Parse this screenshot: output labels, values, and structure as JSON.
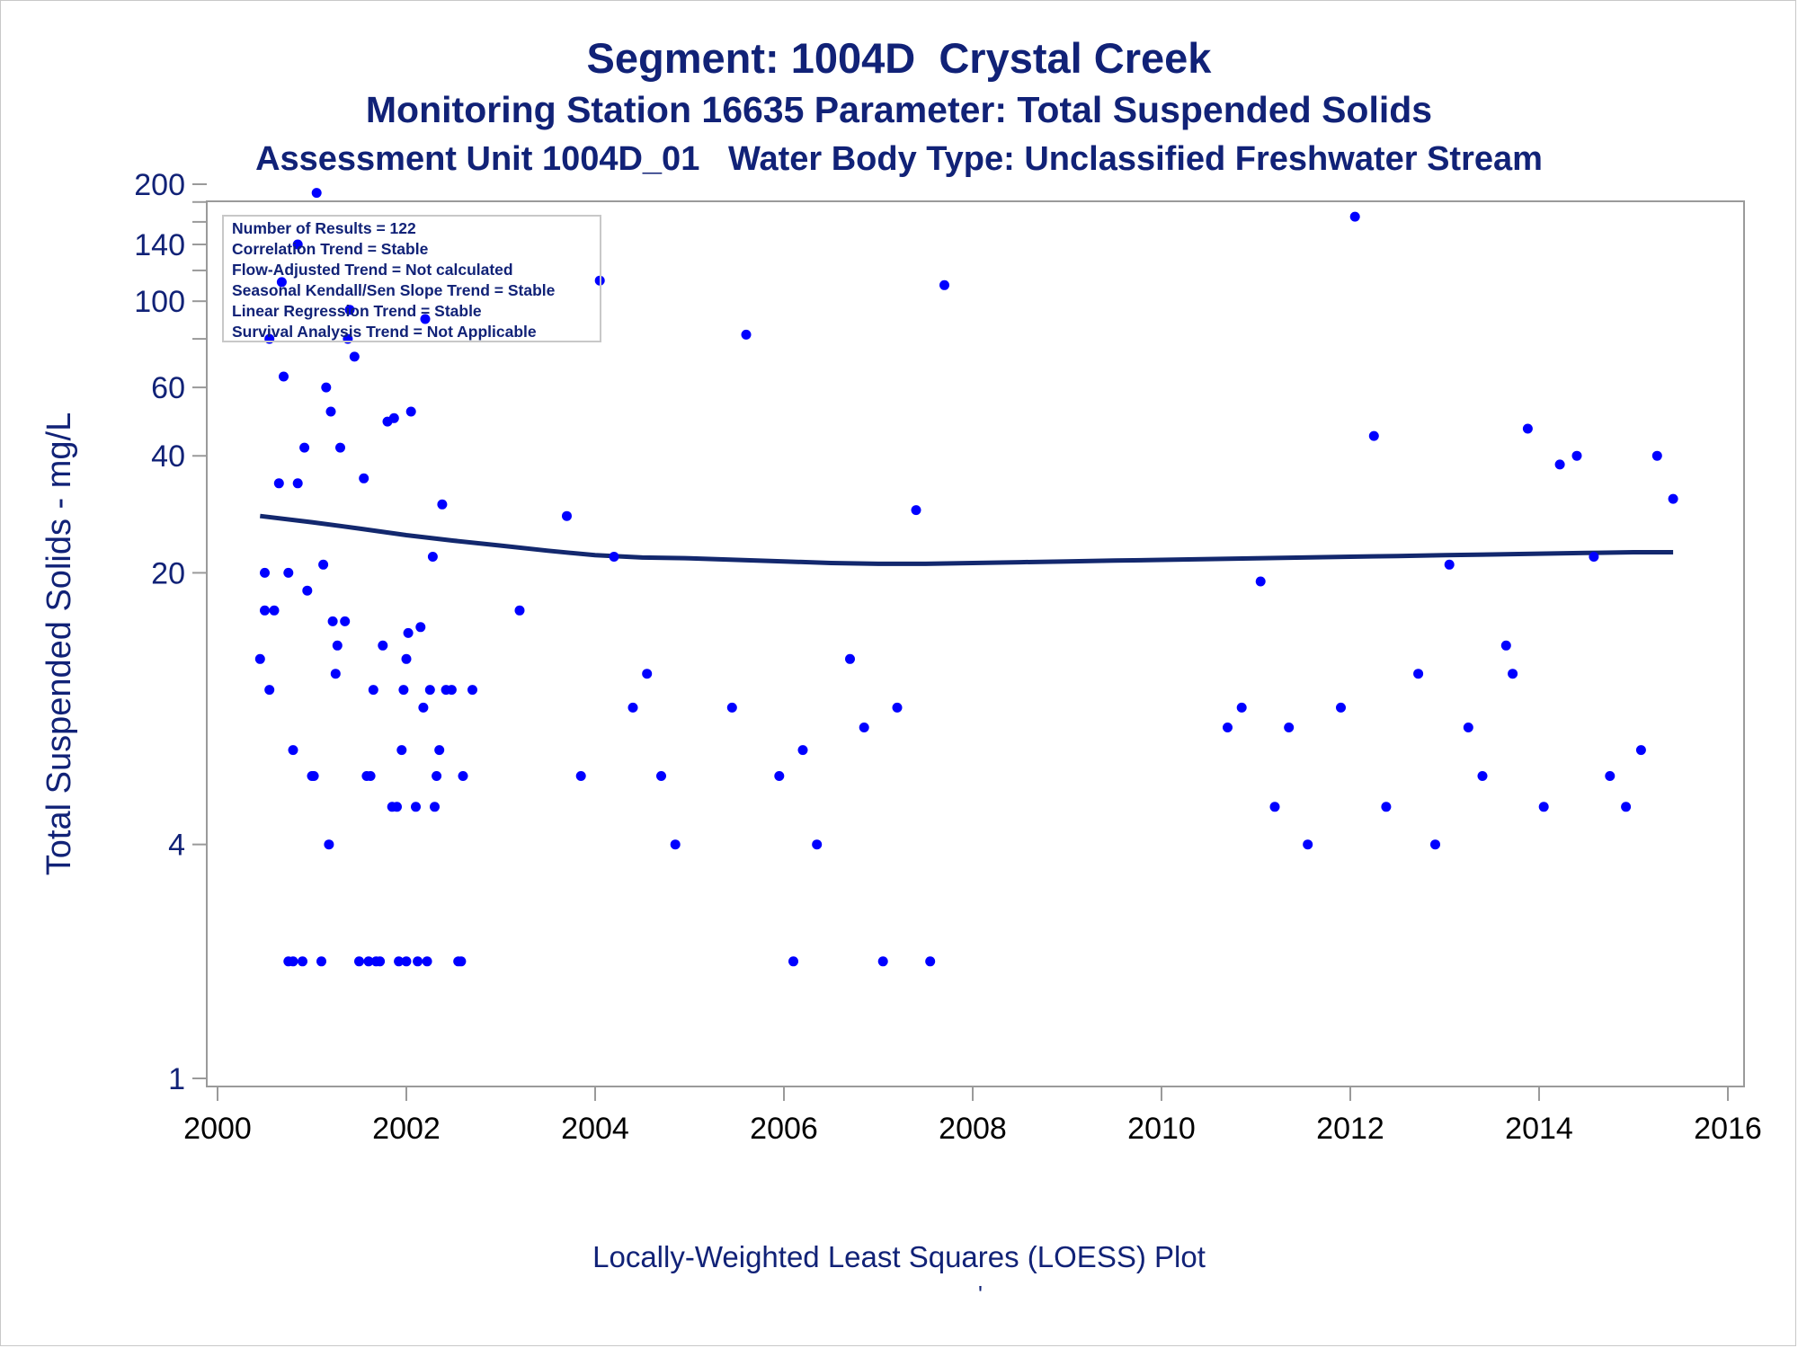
{
  "titles": {
    "line1": "Segment: 1004D  Crystal Creek",
    "line2": "Monitoring Station 16635 Parameter: Total Suspended Solids",
    "line3": "Assessment Unit 1004D_01   Water Body Type: Unclassified Freshwater Stream"
  },
  "footer": {
    "caption": "Locally-Weighted Least Squares (LOESS) Plot",
    "mark": "'"
  },
  "colors": {
    "text": "#112277",
    "points": "#0000ff",
    "loess": "#13286e",
    "axis": "#9a9a9a"
  },
  "chart_data": {
    "type": "scatter",
    "title": "Segment: 1004D  Crystal Creek",
    "ylabel": "Total Suspended Solids - mg/L",
    "xlabel": "",
    "yscale": "log",
    "xlim": [
      2000,
      2016
    ],
    "ylim": [
      1,
      200
    ],
    "x_ticks": [
      2000,
      2002,
      2004,
      2006,
      2008,
      2010,
      2012,
      2014,
      2016
    ],
    "y_tick_labels": [
      1,
      4,
      20,
      40,
      60,
      100,
      140,
      200
    ],
    "y_minor_ticks": [
      80,
      120,
      160,
      180
    ],
    "legend_box": {
      "position": "top-left",
      "lines": [
        "Number of Results = 122",
        "Correlation Trend = Stable",
        "Flow-Adjusted Trend = Not calculated",
        "Seasonal Kendall/Sen Slope Trend = Stable",
        "Linear Regression Trend = Stable",
        "Survival Analysis Trend = Not Applicable"
      ]
    },
    "points": [
      [
        2000.45,
        12
      ],
      [
        2000.5,
        16
      ],
      [
        2000.5,
        20
      ],
      [
        2000.55,
        80
      ],
      [
        2000.55,
        10
      ],
      [
        2000.6,
        16
      ],
      [
        2000.65,
        34
      ],
      [
        2000.68,
        112
      ],
      [
        2000.7,
        64
      ],
      [
        2000.75,
        20
      ],
      [
        2000.75,
        2
      ],
      [
        2000.8,
        7
      ],
      [
        2000.8,
        2
      ],
      [
        2000.85,
        140
      ],
      [
        2000.85,
        34
      ],
      [
        2000.9,
        2
      ],
      [
        2000.92,
        42
      ],
      [
        2000.95,
        18
      ],
      [
        2001.0,
        6
      ],
      [
        2001.02,
        6
      ],
      [
        2001.05,
        190
      ],
      [
        2001.1,
        2
      ],
      [
        2001.12,
        21
      ],
      [
        2001.15,
        60
      ],
      [
        2001.18,
        4
      ],
      [
        2001.2,
        52
      ],
      [
        2001.22,
        15
      ],
      [
        2001.25,
        11
      ],
      [
        2001.27,
        13
      ],
      [
        2001.3,
        42
      ],
      [
        2001.35,
        15
      ],
      [
        2001.38,
        80
      ],
      [
        2001.4,
        95
      ],
      [
        2001.45,
        72
      ],
      [
        2001.5,
        2
      ],
      [
        2001.55,
        35
      ],
      [
        2001.58,
        6
      ],
      [
        2001.6,
        2
      ],
      [
        2001.62,
        6
      ],
      [
        2001.65,
        10
      ],
      [
        2001.68,
        2
      ],
      [
        2001.72,
        2
      ],
      [
        2001.75,
        13
      ],
      [
        2001.8,
        49
      ],
      [
        2001.85,
        5
      ],
      [
        2001.87,
        50
      ],
      [
        2001.9,
        5
      ],
      [
        2001.92,
        2
      ],
      [
        2001.95,
        7
      ],
      [
        2001.97,
        10
      ],
      [
        2002.0,
        2
      ],
      [
        2002.0,
        12
      ],
      [
        2002.02,
        14
      ],
      [
        2002.05,
        52
      ],
      [
        2002.1,
        5
      ],
      [
        2002.12,
        2
      ],
      [
        2002.15,
        14.5
      ],
      [
        2002.18,
        9
      ],
      [
        2002.2,
        90
      ],
      [
        2002.22,
        2
      ],
      [
        2002.25,
        10
      ],
      [
        2002.28,
        22
      ],
      [
        2002.3,
        5
      ],
      [
        2002.32,
        6
      ],
      [
        2002.35,
        7
      ],
      [
        2002.38,
        30
      ],
      [
        2002.42,
        10
      ],
      [
        2002.48,
        10
      ],
      [
        2002.55,
        2
      ],
      [
        2002.58,
        2
      ],
      [
        2002.6,
        6
      ],
      [
        2002.7,
        10
      ],
      [
        2003.2,
        16
      ],
      [
        2003.7,
        28
      ],
      [
        2003.85,
        6
      ],
      [
        2004.05,
        113
      ],
      [
        2004.2,
        22
      ],
      [
        2004.4,
        9
      ],
      [
        2004.55,
        11
      ],
      [
        2004.7,
        6
      ],
      [
        2004.85,
        4
      ],
      [
        2005.45,
        9
      ],
      [
        2005.6,
        82
      ],
      [
        2005.95,
        6
      ],
      [
        2006.1,
        2
      ],
      [
        2006.2,
        7
      ],
      [
        2006.35,
        4
      ],
      [
        2006.7,
        12
      ],
      [
        2006.85,
        8
      ],
      [
        2007.05,
        2
      ],
      [
        2007.2,
        9
      ],
      [
        2007.4,
        29
      ],
      [
        2007.55,
        2
      ],
      [
        2007.7,
        110
      ],
      [
        2010.7,
        8
      ],
      [
        2010.85,
        9
      ],
      [
        2011.05,
        19
      ],
      [
        2011.2,
        5
      ],
      [
        2011.35,
        8
      ],
      [
        2011.55,
        4
      ],
      [
        2011.9,
        9
      ],
      [
        2012.05,
        165
      ],
      [
        2012.25,
        45
      ],
      [
        2012.38,
        5
      ],
      [
        2012.72,
        11
      ],
      [
        2012.9,
        4
      ],
      [
        2013.05,
        21
      ],
      [
        2013.25,
        8
      ],
      [
        2013.4,
        6
      ],
      [
        2013.65,
        13
      ],
      [
        2013.72,
        11
      ],
      [
        2013.88,
        47
      ],
      [
        2014.05,
        5
      ],
      [
        2014.22,
        38
      ],
      [
        2014.4,
        40
      ],
      [
        2014.58,
        22
      ],
      [
        2014.75,
        6
      ],
      [
        2014.92,
        5
      ],
      [
        2015.08,
        7
      ],
      [
        2015.25,
        40
      ],
      [
        2015.42,
        31
      ]
    ],
    "loess_line": [
      [
        2000.45,
        28
      ],
      [
        2001.0,
        27
      ],
      [
        2001.5,
        26
      ],
      [
        2002.0,
        25
      ],
      [
        2002.5,
        24.2
      ],
      [
        2003.0,
        23.5
      ],
      [
        2003.5,
        22.8
      ],
      [
        2004.0,
        22.2
      ],
      [
        2004.5,
        21.9
      ],
      [
        2005.0,
        21.8
      ],
      [
        2005.5,
        21.6
      ],
      [
        2006.0,
        21.4
      ],
      [
        2006.5,
        21.2
      ],
      [
        2007.0,
        21.1
      ],
      [
        2007.5,
        21.1
      ],
      [
        2008.0,
        21.2
      ],
      [
        2008.5,
        21.3
      ],
      [
        2009.0,
        21.4
      ],
      [
        2009.5,
        21.5
      ],
      [
        2010.0,
        21.6
      ],
      [
        2010.5,
        21.7
      ],
      [
        2011.0,
        21.8
      ],
      [
        2011.5,
        21.9
      ],
      [
        2012.0,
        22.0
      ],
      [
        2012.5,
        22.1
      ],
      [
        2013.0,
        22.2
      ],
      [
        2013.5,
        22.3
      ],
      [
        2014.0,
        22.4
      ],
      [
        2014.5,
        22.5
      ],
      [
        2015.0,
        22.6
      ],
      [
        2015.42,
        22.6
      ]
    ]
  }
}
